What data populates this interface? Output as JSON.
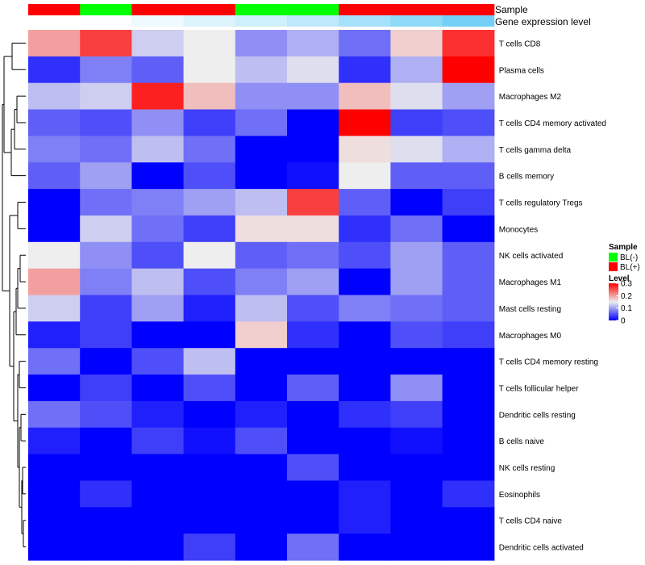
{
  "chart_data": {
    "type": "heatmap",
    "annotation_tracks": {
      "sample_label": "Sample",
      "expression_label": "Gene expression level"
    },
    "columns": [
      {
        "sample": "BL(+)",
        "expression": 0.0
      },
      {
        "sample": "BL(-)",
        "expression": 0.02
      },
      {
        "sample": "BL(+)",
        "expression": 0.1
      },
      {
        "sample": "BL(+)",
        "expression": 0.2
      },
      {
        "sample": "BL(-)",
        "expression": 0.3
      },
      {
        "sample": "BL(-)",
        "expression": 0.4
      },
      {
        "sample": "BL(+)",
        "expression": 0.55
      },
      {
        "sample": "BL(+)",
        "expression": 0.7
      },
      {
        "sample": "BL(+)",
        "expression": 0.85
      }
    ],
    "rows": [
      "T cells CD8",
      "Plasma cells",
      "Macrophages M2",
      "T cells CD4 memory activated",
      "T cells gamma delta",
      "B cells memory",
      "T cells regulatory  Tregs",
      "Monocytes",
      "NK cells activated",
      "Macrophages M1",
      "Mast cells resting",
      "Macrophages M0",
      "T cells CD4 memory resting",
      "T cells follicular helper",
      "Dendritic cells resting",
      "B cells naive",
      "NK cells resting",
      "Eosinophils",
      "T cells CD4 naive",
      "Dendritic cells activated"
    ],
    "values": [
      [
        0.2,
        0.26,
        0.13,
        0.15,
        0.09,
        0.11,
        0.07,
        0.17,
        0.27
      ],
      [
        0.03,
        0.08,
        0.06,
        0.15,
        0.12,
        0.14,
        0.03,
        0.11,
        0.3
      ],
      [
        0.12,
        0.13,
        0.28,
        0.18,
        0.09,
        0.09,
        0.18,
        0.14,
        0.1
      ],
      [
        0.06,
        0.05,
        0.09,
        0.04,
        0.07,
        0.0,
        0.3,
        0.04,
        0.05
      ],
      [
        0.08,
        0.07,
        0.12,
        0.07,
        0.0,
        0.0,
        0.16,
        0.14,
        0.11
      ],
      [
        0.06,
        0.1,
        0.0,
        0.05,
        0.0,
        0.01,
        0.15,
        0.06,
        0.06
      ],
      [
        0.0,
        0.07,
        0.08,
        0.1,
        0.12,
        0.26,
        0.06,
        0.0,
        0.04
      ],
      [
        0.0,
        0.13,
        0.07,
        0.04,
        0.16,
        0.16,
        0.03,
        0.07,
        0.0
      ],
      [
        0.15,
        0.09,
        0.05,
        0.15,
        0.06,
        0.07,
        0.05,
        0.1,
        0.06
      ],
      [
        0.2,
        0.08,
        0.12,
        0.05,
        0.08,
        0.1,
        0.0,
        0.1,
        0.06
      ],
      [
        0.13,
        0.04,
        0.1,
        0.02,
        0.12,
        0.05,
        0.08,
        0.07,
        0.06
      ],
      [
        0.02,
        0.04,
        0.0,
        0.0,
        0.17,
        0.03,
        0.0,
        0.05,
        0.04
      ],
      [
        0.07,
        0.0,
        0.05,
        0.12,
        0.0,
        0.0,
        0.0,
        0.0,
        0.0
      ],
      [
        0.0,
        0.04,
        0.0,
        0.05,
        0.0,
        0.06,
        0.0,
        0.09,
        0.0
      ],
      [
        0.07,
        0.05,
        0.02,
        0.0,
        0.02,
        0.0,
        0.03,
        0.04,
        0.0
      ],
      [
        0.02,
        0.0,
        0.04,
        0.01,
        0.05,
        0.0,
        0.0,
        0.01,
        0.0
      ],
      [
        0.0,
        0.0,
        0.0,
        0.0,
        0.0,
        0.05,
        0.0,
        0.0,
        0.0
      ],
      [
        0.0,
        0.03,
        0.0,
        0.0,
        0.0,
        0.0,
        0.02,
        0.0,
        0.03
      ],
      [
        0.0,
        0.0,
        0.0,
        0.0,
        0.0,
        0.0,
        0.02,
        0.0,
        0.0
      ],
      [
        0.0,
        0.0,
        0.0,
        0.04,
        0.0,
        0.07,
        0.0,
        0.0,
        0.0
      ]
    ],
    "color_scale": {
      "stops": [
        {
          "value": 0.0,
          "color": "#0000ff"
        },
        {
          "value": 0.15,
          "color": "#eeeeee"
        },
        {
          "value": 0.3,
          "color": "#ff0000"
        }
      ]
    },
    "expression_scale": {
      "low": "#ffffff",
      "high": "#5bc8f5"
    },
    "legend": {
      "position": "right",
      "sample_title": "Sample",
      "sample_entries": [
        {
          "label": "BL(-)",
          "color": "#00ff00"
        },
        {
          "label": "BL(+)",
          "color": "#ff0000"
        }
      ],
      "level_title": "Level",
      "level_ticks": [
        "0.3",
        "0.2",
        "0.1",
        "0"
      ],
      "level_tick_values": [
        0.3,
        0.2,
        0.1,
        0
      ]
    },
    "dendrogram": "rows"
  }
}
